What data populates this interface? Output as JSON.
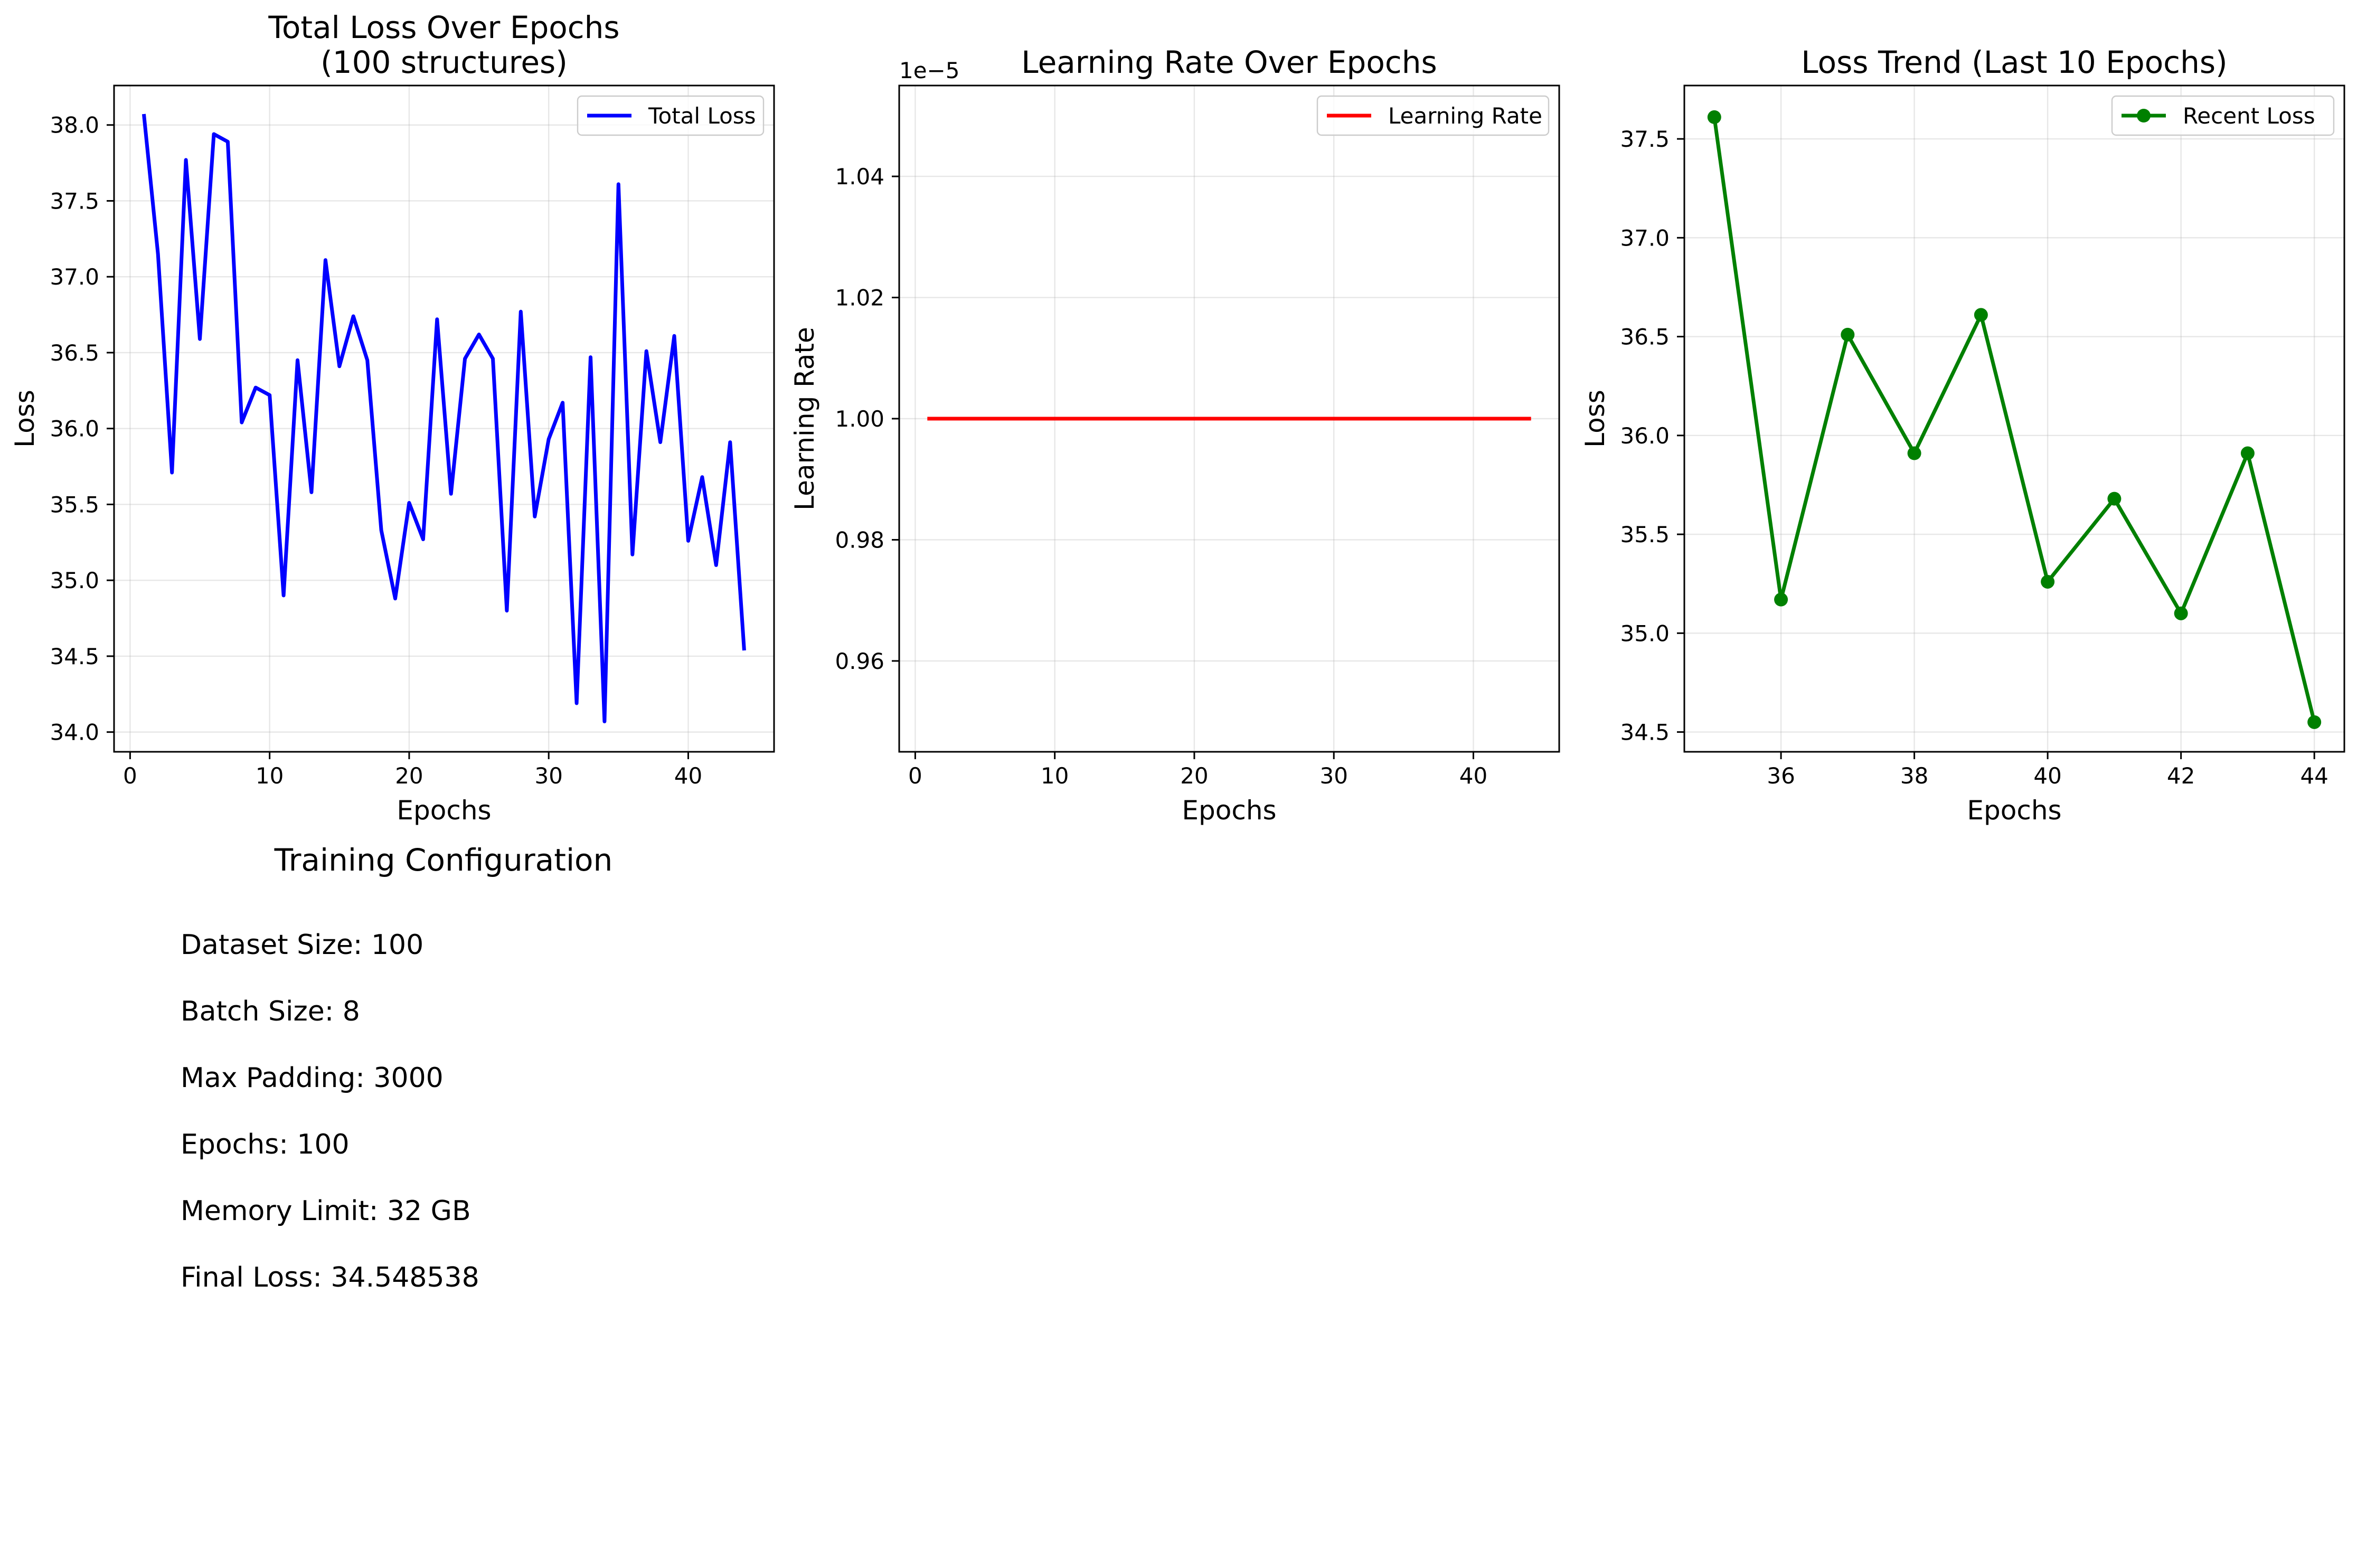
{
  "figure": {
    "background": "#ffffff"
  },
  "chart_data": [
    {
      "type": "line",
      "title": "Total Loss Over Epochs\n(100 structures)",
      "xlabel": "Epochs",
      "ylabel": "Loss",
      "xlim": [
        -1.15,
        46.15
      ],
      "ylim": [
        33.87,
        38.26
      ],
      "xticks": [
        0,
        10,
        20,
        30,
        40
      ],
      "yticks": [
        34.0,
        34.5,
        35.0,
        35.5,
        36.0,
        36.5,
        37.0,
        37.5,
        38.0
      ],
      "ytick_format": "1dp",
      "grid": true,
      "legend": "top-right",
      "series": [
        {
          "name": "Total Loss",
          "color": "#0000ff",
          "x": [
            1,
            2,
            3,
            4,
            5,
            6,
            7,
            8,
            9,
            10,
            11,
            12,
            13,
            14,
            15,
            16,
            17,
            18,
            19,
            20,
            21,
            22,
            23,
            24,
            25,
            26,
            27,
            28,
            29,
            30,
            31,
            32,
            33,
            34,
            35,
            36,
            37,
            38,
            39,
            40,
            41,
            42,
            43,
            44
          ],
          "y": [
            38.06,
            37.15,
            35.71,
            37.77,
            36.59,
            37.94,
            37.89,
            36.04,
            36.27,
            36.22,
            34.9,
            36.45,
            35.58,
            37.11,
            36.41,
            36.74,
            36.45,
            35.33,
            34.88,
            35.51,
            35.27,
            36.72,
            35.57,
            36.46,
            36.62,
            36.46,
            34.8,
            36.77,
            35.42,
            35.93,
            36.17,
            34.19,
            36.47,
            34.07,
            37.61,
            35.17,
            36.51,
            35.91,
            36.61,
            35.26,
            35.68,
            35.1,
            35.91,
            34.55
          ]
        }
      ]
    },
    {
      "type": "line",
      "title": "Learning Rate Over Epochs",
      "xlabel": "Epochs",
      "ylabel": "Learning Rate",
      "offset_text": "1e−5",
      "xlim": [
        -1.15,
        46.15
      ],
      "ylim": [
        0.945,
        1.055
      ],
      "xticks": [
        0,
        10,
        20,
        30,
        40
      ],
      "yticks": [
        0.96,
        0.98,
        1.0,
        1.02,
        1.04
      ],
      "ytick_format": "2dp",
      "grid": true,
      "legend": "top-right",
      "series": [
        {
          "name": "Learning Rate",
          "color": "#ff0000",
          "x": [
            1,
            44
          ],
          "y": [
            1.0,
            1.0
          ]
        }
      ]
    },
    {
      "type": "line",
      "title": "Loss Trend (Last 10 Epochs)",
      "xlabel": "Epochs",
      "ylabel": "Loss",
      "xlim": [
        34.55,
        44.45
      ],
      "ylim": [
        34.4,
        37.77
      ],
      "xticks": [
        36,
        38,
        40,
        42,
        44
      ],
      "yticks": [
        34.5,
        35.0,
        35.5,
        36.0,
        36.5,
        37.0,
        37.5
      ],
      "ytick_format": "1dp",
      "grid": true,
      "legend": "top-right",
      "markers": true,
      "series": [
        {
          "name": "Recent Loss",
          "color": "#008000",
          "x": [
            35,
            36,
            37,
            38,
            39,
            40,
            41,
            42,
            43,
            44
          ],
          "y": [
            37.61,
            35.17,
            36.51,
            35.91,
            36.61,
            35.26,
            35.68,
            35.1,
            35.91,
            34.55
          ]
        }
      ]
    }
  ],
  "config": {
    "title": "Training Configuration",
    "lines": [
      "Dataset Size: 100",
      "Batch Size: 8",
      "Max Padding: 3000",
      "Epochs: 100",
      "Memory Limit: 32 GB",
      "Final Loss: 34.548538"
    ]
  }
}
